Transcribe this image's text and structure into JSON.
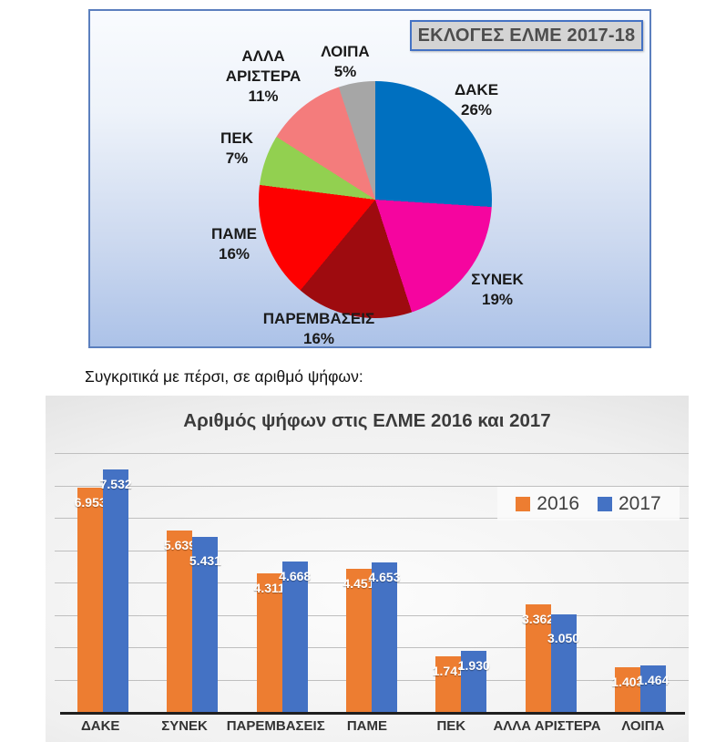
{
  "comparison_note": "Συγκριτικά με πέρσι, σε αριθμό ψήφων:",
  "chart_data": [
    {
      "type": "pie",
      "title": "ΕΚΛΟΓΕΣ ΕΛΜΕ 2017-18",
      "unit": "percent",
      "direction": "clockwise",
      "start_angle_deg": 0,
      "slices": [
        {
          "name": "ΔΑΚΕ",
          "pct": 26,
          "pct_label": "26%",
          "color": "#0070C0"
        },
        {
          "name": "ΣΥΝΕΚ",
          "pct": 19,
          "pct_label": "19%",
          "color": "#F5059F"
        },
        {
          "name": "ΠΑΡΕΜΒΑΣΕΙΣ",
          "pct": 16,
          "pct_label": "16%",
          "color": "#9E0B0F"
        },
        {
          "name": "ΠΑΜΕ",
          "pct": 16,
          "pct_label": "16%",
          "color": "#FE0000"
        },
        {
          "name": "ΠΕΚ",
          "pct": 7,
          "pct_label": "7%",
          "color": "#92D050"
        },
        {
          "name": "ΑΛΛΑ ΑΡΙΣΤΕΡΑ",
          "pct": 11,
          "pct_label": "11%",
          "color": "#F47C7C"
        },
        {
          "name": "ΛΟΙΠΑ",
          "pct": 5,
          "pct_label": "5%",
          "color": "#A6A6A6"
        }
      ],
      "frame": {
        "background_top": "#F9FBFE",
        "background_bottom": "#ACC2E8",
        "border": "#5B7FBE",
        "title_box_bg": "#D4D4D4",
        "title_box_border": "#4472C4"
      }
    },
    {
      "type": "bar",
      "title": "Αριθμός ψήφων στις ΕΛΜΕ 2016 και 2017",
      "categories": [
        "ΔΑΚΕ",
        "ΣΥΝΕΚ",
        "ΠΑΡΕΜΒΑΣΕΙΣ",
        "ΠΑΜΕ",
        "ΠΕΚ",
        "ΑΛΛΑ ΑΡΙΣΤΕΡΑ",
        "ΛΟΙΠΑ"
      ],
      "series": [
        {
          "name": "2016",
          "color": "#ED7D31",
          "values": [
            6953,
            5639,
            4311,
            4451,
            1741,
            3362,
            1403
          ],
          "value_labels": [
            "6.953",
            "5.639",
            "4.311",
            "4.451",
            "1.741",
            "3.362",
            "1.403"
          ]
        },
        {
          "name": "2017",
          "color": "#4472C4",
          "values": [
            7532,
            5431,
            4668,
            4653,
            1930,
            3050,
            1464
          ],
          "value_labels": [
            "7.532",
            "5.431",
            "4.668",
            "4.653",
            "1.930",
            "3.050",
            "1.464"
          ]
        }
      ],
      "ylim": [
        0,
        8000
      ],
      "gridline_step": 1000,
      "grid": true,
      "legend_position": "upper-right",
      "legend": [
        "2016",
        "2017"
      ]
    }
  ]
}
